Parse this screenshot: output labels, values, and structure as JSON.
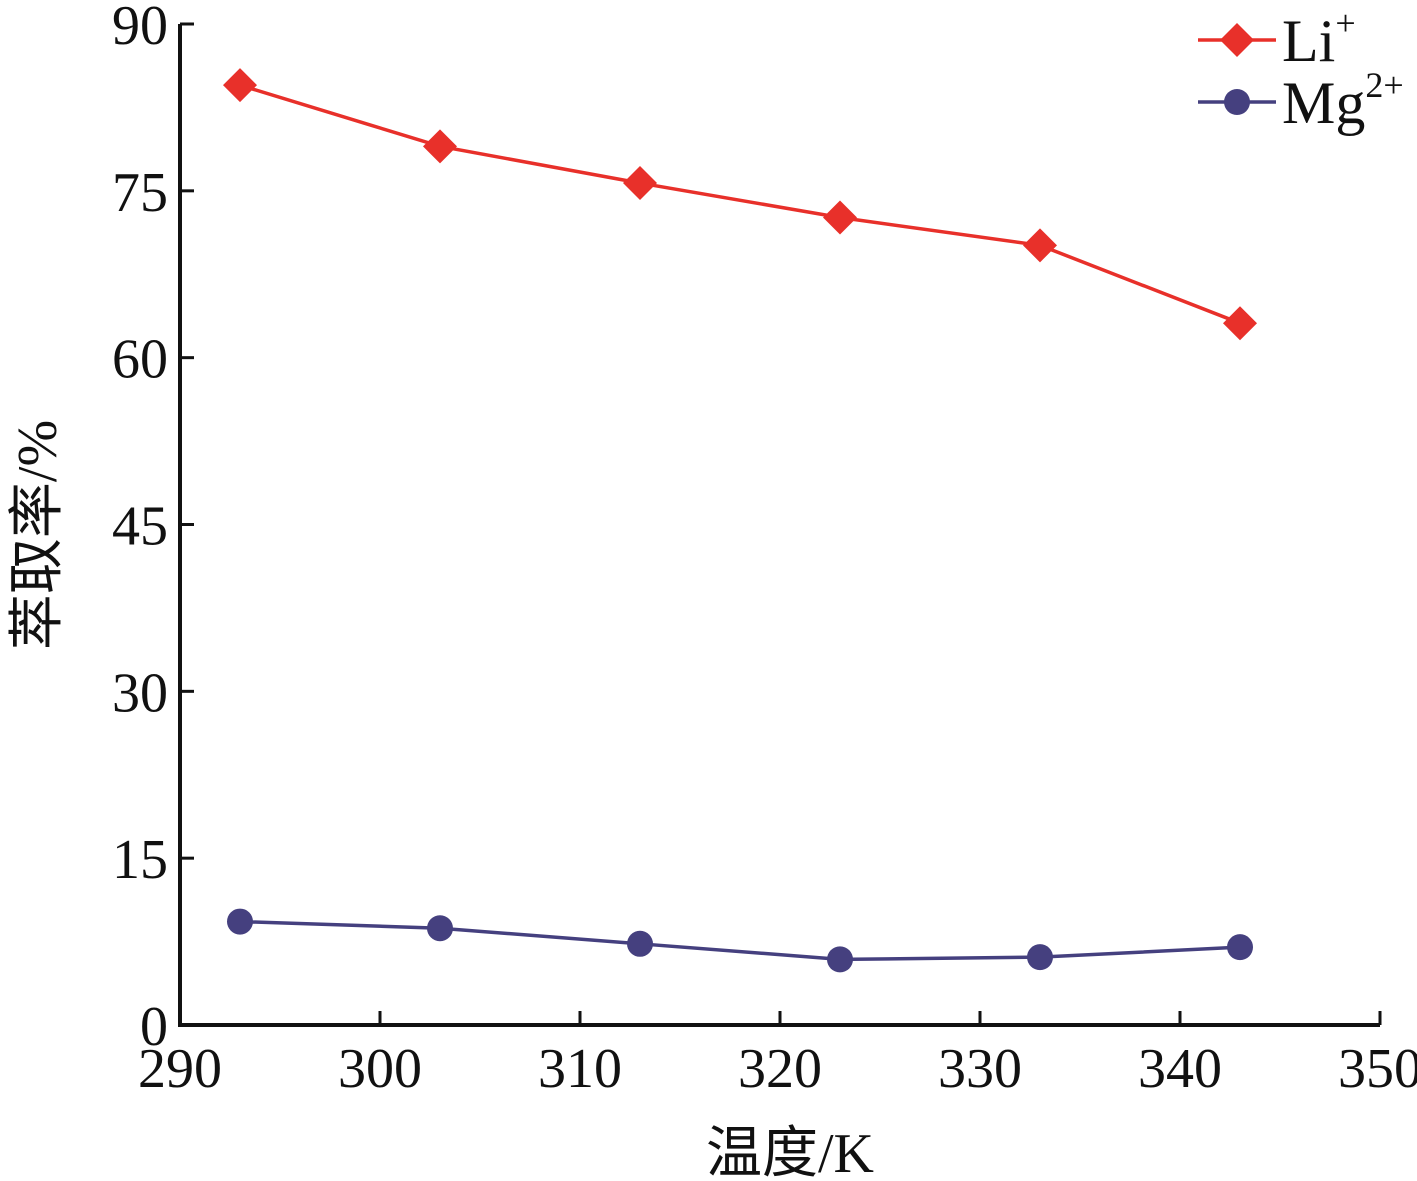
{
  "chart_data": {
    "type": "line",
    "xlabel": "温度/K",
    "ylabel": "萃取率/%",
    "xlim": [
      290,
      350
    ],
    "ylim": [
      0,
      90
    ],
    "xticks": [
      290,
      300,
      310,
      320,
      330,
      340,
      350
    ],
    "yticks": [
      0,
      15,
      30,
      45,
      60,
      75,
      90
    ],
    "grid": false,
    "legend_position": "top-right",
    "series": [
      {
        "name": "Li",
        "name_sup": "+",
        "color": "#e8302a",
        "marker": "diamond",
        "x": [
          293,
          303,
          313,
          323,
          333,
          343
        ],
        "y": [
          84.5,
          79.0,
          75.7,
          72.6,
          70.1,
          63.1
        ]
      },
      {
        "name": "Mg",
        "name_sup": "2+",
        "color": "#45407f",
        "marker": "circle",
        "x": [
          293,
          303,
          313,
          323,
          333,
          343
        ],
        "y": [
          9.3,
          8.7,
          7.3,
          5.9,
          6.1,
          7.0
        ]
      }
    ]
  }
}
